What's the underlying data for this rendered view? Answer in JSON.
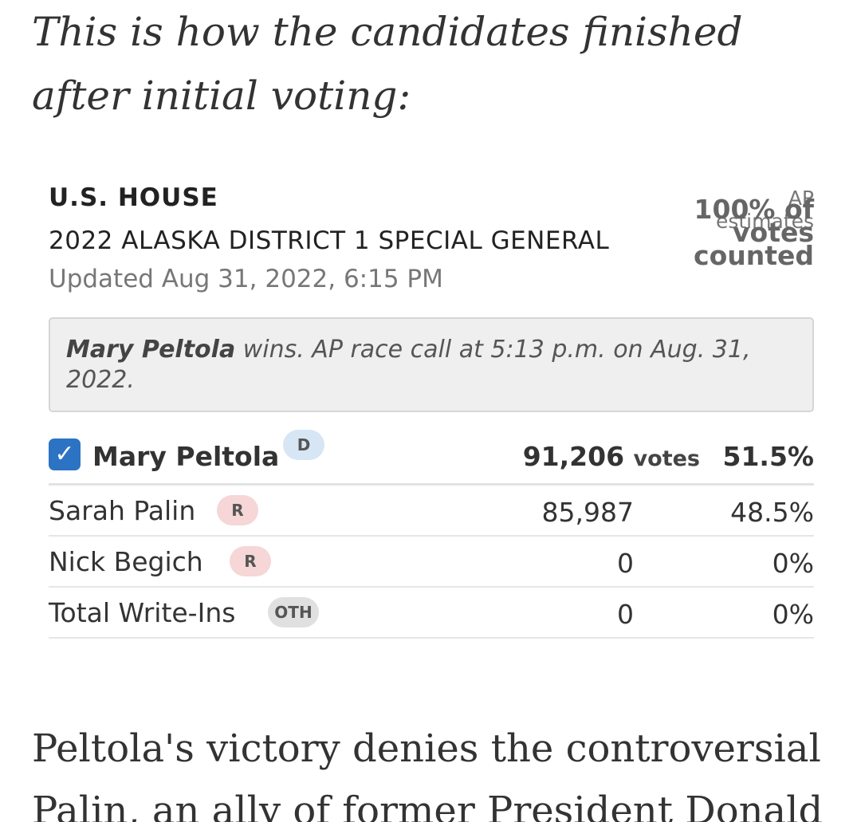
{
  "article": {
    "intro": "This is how the candidates finished after initial voting:",
    "body": "Peltola's victory denies the controversial Palin, an ally of former President Donald"
  },
  "race": {
    "office": "U.S. HOUSE",
    "name": "2022 ALASKA DISTRICT 1 SPECIAL GENERAL",
    "updated": "Updated Aug 31, 2022, 6:15 PM",
    "estimate_prefix": "AP estimates",
    "estimate_value": "100% of votes counted",
    "call_winner": "Mary Peltola",
    "call_text": " wins. AP race call at 5:13 p.m. on Aug. 31, 2022."
  },
  "results": [
    {
      "name": "Mary Peltola",
      "party": "D",
      "votes": "91,206",
      "votes_unit": "votes",
      "pct": "51.5%",
      "winner": true
    },
    {
      "name": "Sarah Palin",
      "party": "R",
      "votes": "85,987",
      "pct": "48.5%",
      "winner": false
    },
    {
      "name": "Nick Begich",
      "party": "R",
      "votes": "0",
      "pct": "0%",
      "winner": false
    },
    {
      "name": "Total Write-Ins",
      "party": "OTH",
      "votes": "0",
      "pct": "0%",
      "winner": false
    }
  ],
  "colors": {
    "checkbox": "#2c73c4",
    "dem_badge": "#d6e6f5",
    "rep_badge": "#f6d6d6",
    "oth_badge": "#e0e0e0"
  },
  "icons": {
    "winner_check": "check-icon"
  }
}
